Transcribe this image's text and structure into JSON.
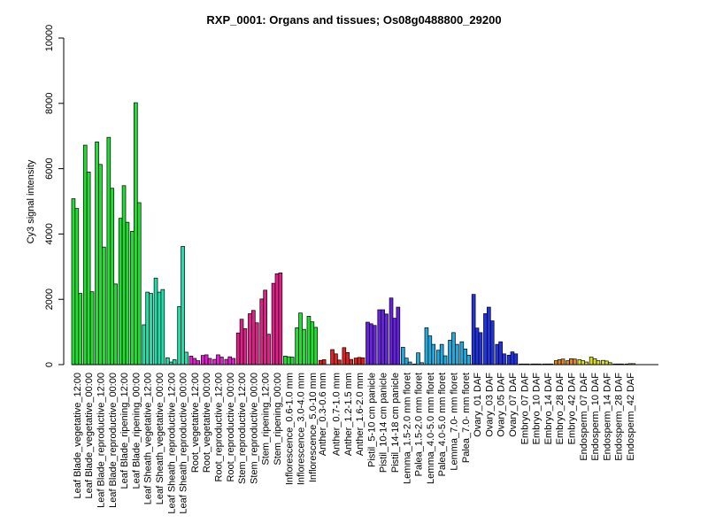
{
  "chart_data": {
    "type": "bar",
    "title": "RXP_0001: Organs and tissues; Os08g0488800_29200",
    "xlabel": "",
    "ylabel": "Cy3 signal intensity",
    "ylim": [
      0,
      10000
    ],
    "yticks": [
      0,
      2000,
      4000,
      6000,
      8000,
      10000
    ],
    "grid": false,
    "groups": [
      {
        "label": "Leaf Blade_vegetative_12:00",
        "values": [
          5080,
          4780,
          2180
        ],
        "color": "#22dd33"
      },
      {
        "label": "Leaf Blade_vegetative_00:00",
        "values": [
          6720,
          5900,
          2230
        ],
        "color": "#22dd33"
      },
      {
        "label": "Leaf Blade_reproductive_12:00",
        "values": [
          6820,
          6130,
          3600
        ],
        "color": "#22dd33"
      },
      {
        "label": "Leaf Blade_reproductive_00:00",
        "values": [
          6960,
          5400,
          2470
        ],
        "color": "#22dd33"
      },
      {
        "label": "Leaf Blade_ripening_12:00",
        "values": [
          4480,
          5480,
          4360
        ],
        "color": "#22dd33"
      },
      {
        "label": "Leaf Blade_ripening_00:00",
        "values": [
          4080,
          8020,
          4960
        ],
        "color": "#22dd33"
      },
      {
        "label": "Leaf Sheath_vegetative_12:00",
        "values": [
          1220,
          2220,
          2180
        ],
        "color": "#22ddaa"
      },
      {
        "label": "Leaf Sheath_vegetative_00:00",
        "values": [
          2650,
          2220,
          2300
        ],
        "color": "#22ddaa"
      },
      {
        "label": "Leaf Sheath_reproductive_12:00",
        "values": [
          210,
          80,
          150
        ],
        "color": "#22ddaa"
      },
      {
        "label": "Leaf Sheath_reproductive_00:00",
        "values": [
          1780,
          3620,
          380
        ],
        "color": "#22ddaa"
      },
      {
        "label": "Root_vegetative_12:00",
        "values": [
          260,
          190,
          120
        ],
        "color": "#dd22cc"
      },
      {
        "label": "Root_vegetative_00:00",
        "values": [
          280,
          300,
          190
        ],
        "color": "#dd22cc"
      },
      {
        "label": "Root_reproductive_12:00",
        "values": [
          160,
          300,
          230
        ],
        "color": "#dd22cc"
      },
      {
        "label": "Root_reproductive_00:00",
        "values": [
          160,
          240,
          190
        ],
        "color": "#dd22cc"
      },
      {
        "label": "Stem_reproductive_12:00",
        "values": [
          970,
          1390,
          1100
        ],
        "color": "#dd2288"
      },
      {
        "label": "Stem_reproductive_00:00",
        "values": [
          1560,
          1660,
          1280
        ],
        "color": "#dd2288"
      },
      {
        "label": "Stem_ripening_12:00",
        "values": [
          2010,
          2280,
          930
        ],
        "color": "#dd2288"
      },
      {
        "label": "Stem_ripening_00:00",
        "values": [
          2490,
          2780,
          2810
        ],
        "color": "#dd2288"
      },
      {
        "label": "Inflorescence_0.6-1.0 mm",
        "values": [
          260,
          240,
          230
        ],
        "color": "#22dd33"
      },
      {
        "label": "Inflorescence_3.0-4.0 mm",
        "values": [
          1130,
          1580,
          1080
        ],
        "color": "#22dd33"
      },
      {
        "label": "Inflorescence_5.0-10 mm",
        "values": [
          1480,
          1310,
          1140
        ],
        "color": "#22dd33"
      },
      {
        "label": "Anther_0.3-0.6 mm",
        "values": [
          130,
          150
        ],
        "color": "#dd2222"
      },
      {
        "label": "Anther_0.7-1.0 mm",
        "values": [
          460,
          330,
          140
        ],
        "color": "#dd2222"
      },
      {
        "label": "Anther_1.2-1.5 mm",
        "values": [
          520,
          370,
          160
        ],
        "color": "#dd2222"
      },
      {
        "label": "Anther_1.6-2.0 mm",
        "values": [
          200,
          220,
          210
        ],
        "color": "#dd2222"
      },
      {
        "label": "Pistil_5-10 cm panicle",
        "values": [
          1300,
          1250,
          1200
        ],
        "color": "#6622dd"
      },
      {
        "label": "Pistil_10-14 cm panicle",
        "values": [
          1680,
          1680,
          1550
        ],
        "color": "#6622dd"
      },
      {
        "label": "Pistil_14-18 cm panicle",
        "values": [
          2040,
          1420,
          1760
        ],
        "color": "#6622dd"
      },
      {
        "label": "Lemma_1.5-2.0 mm floret",
        "values": [
          530,
          200,
          80
        ],
        "color": "#22aadd"
      },
      {
        "label": "Palea_1.5-2.0 mm floret",
        "values": [
          20,
          360,
          60
        ],
        "color": "#22aadd"
      },
      {
        "label": "Lemma_4.0-5.0 mm floret",
        "values": [
          1130,
          880,
          620
        ],
        "color": "#22aadd"
      },
      {
        "label": "Palea_4.0-5.0 mm floret",
        "values": [
          440,
          620,
          270
        ],
        "color": "#22aadd"
      },
      {
        "label": "Lemma_7.0- mm floret",
        "values": [
          750,
          980,
          620
        ],
        "color": "#22aadd"
      },
      {
        "label": "Palea_7.0- mm floret",
        "values": [
          700,
          480,
          290
        ],
        "color": "#22aadd"
      },
      {
        "label": "Ovary_01 DAF",
        "values": [
          2150,
          1120,
          980
        ],
        "color": "#2233dd"
      },
      {
        "label": "Ovary_03 DAF",
        "values": [
          1560,
          1760,
          1340
        ],
        "color": "#2233dd"
      },
      {
        "label": "Ovary_05 DAF",
        "values": [
          620,
          700,
          330
        ],
        "color": "#2233dd"
      },
      {
        "label": "Ovary_07 DAF",
        "values": [
          290,
          390,
          330
        ],
        "color": "#2233dd"
      },
      {
        "label": "Embryo_07 DAF",
        "values": [
          20,
          20,
          20
        ],
        "color": "#dd8822"
      },
      {
        "label": "Embryo_10 DAF",
        "values": [
          20,
          20,
          20
        ],
        "color": "#dd8822"
      },
      {
        "label": "Embryo_14 DAF",
        "values": [
          20,
          20,
          20
        ],
        "color": "#dd8822"
      },
      {
        "label": "Embryo_28 DAF",
        "values": [
          120,
          150,
          170
        ],
        "color": "#dd8822"
      },
      {
        "label": "Embryo_42 DAF",
        "values": [
          120,
          180,
          170
        ],
        "color": "#dd8822"
      },
      {
        "label": "Endosperm_07 DAF",
        "values": [
          150,
          120,
          80
        ],
        "color": "#dddd22"
      },
      {
        "label": "Endosperm_10 DAF",
        "values": [
          230,
          180,
          120
        ],
        "color": "#dddd22"
      },
      {
        "label": "Endosperm_14 DAF",
        "values": [
          130,
          110,
          60
        ],
        "color": "#dddd22"
      },
      {
        "label": "Endosperm_28 DAF",
        "values": [
          20,
          20,
          20
        ],
        "color": "#dddd22"
      },
      {
        "label": "Endosperm_42 DAF",
        "values": [
          20,
          30,
          30
        ],
        "color": "#dddd22"
      }
    ]
  }
}
